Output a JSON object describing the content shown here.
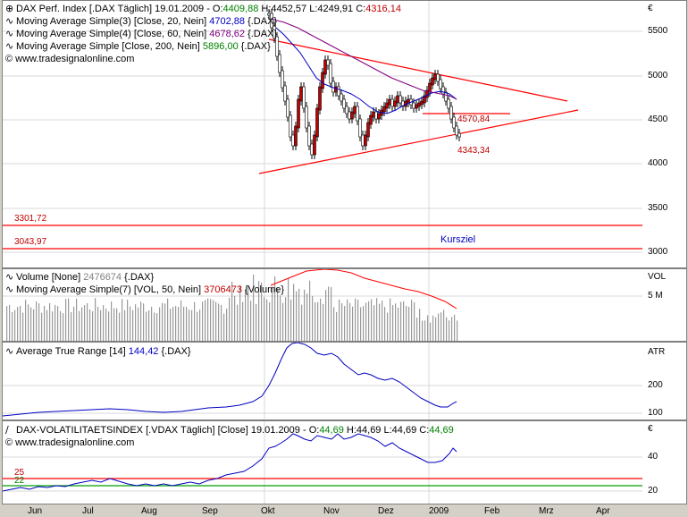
{
  "panes": {
    "price": {
      "title_line": {
        "icon": "candlestick-icon",
        "name": "DAX Perf. Index [.DAX  Täglich] 19.01.2009 - ",
        "o_label": "O:",
        "o": "4409,88",
        "h_label": " H:",
        "h": "4452,57",
        "l_label": " L:",
        "l": "4249,91",
        "c_label": " C:",
        "c": "4316,14"
      },
      "indicators": [
        {
          "label": "Moving Average Simple(3) [Close, 20, Nein] ",
          "value": "4702,88",
          "suffix": " {.DAX}",
          "color": "#0000c0"
        },
        {
          "label": "Moving Average Simple(4) [Close, 60, Nein] ",
          "value": "4678,62",
          "suffix": " {.DAX}",
          "color": "#800080"
        },
        {
          "label": "Moving Average Simple [Close, 200, Nein] ",
          "value": "5896,00",
          "suffix": " {.DAX}",
          "color": "#008000"
        }
      ],
      "copyright": "© www.tradesignalonline.com",
      "levels": [
        "3301,72",
        "3043,97"
      ],
      "annotations": [
        "4570,84",
        "4343,34"
      ],
      "kursziel": "Kursziel",
      "axis_symbol": "€",
      "ticks": [
        "5500",
        "5000",
        "4500",
        "4000",
        "3500",
        "3000"
      ]
    },
    "volume": {
      "line1": {
        "label": "Volume [None] ",
        "value": "2476674",
        "suffix": " {.DAX}"
      },
      "line2": {
        "label": "Moving Average Simple(7) [VOL, 50, Nein] ",
        "value": "3706473",
        "suffix": " {Volume}"
      },
      "axis_title": "VOL",
      "ticks": [
        "5 M"
      ]
    },
    "atr": {
      "line1": {
        "label": "Average True Range [14] ",
        "value": "144,42",
        "suffix": " {.DAX}"
      },
      "axis_title": "ATR",
      "ticks": [
        "200",
        "100"
      ]
    },
    "vdax": {
      "title_line": {
        "name": "DAX-VOLATILITAETSINDEX [.VDAX  Täglich] [Close] 19.01.2009 - ",
        "o_label": "O:",
        "o": "44,69",
        "rest": " H:44,69 L:44,69 ",
        "c_label": "C:",
        "c": "44,69"
      },
      "copyright": "© www.tradesignalonline.com",
      "levels": [
        "25",
        "22"
      ],
      "axis_symbol": "€",
      "ticks": [
        "40",
        "20"
      ]
    }
  },
  "x_axis": [
    "Jun",
    "Jul",
    "Aug",
    "Sep",
    "Okt",
    "Nov",
    "Dez",
    "2009",
    "Feb",
    "Mrz",
    "Apr"
  ],
  "colors": {
    "up": "#c00000",
    "down": "#ffffff",
    "ma20": "#0000c0",
    "ma60": "#800080",
    "trend": "#ff0000",
    "atr": "#0000c0",
    "vdax": "#0000c0",
    "vol_ma": "#ff0000"
  }
}
